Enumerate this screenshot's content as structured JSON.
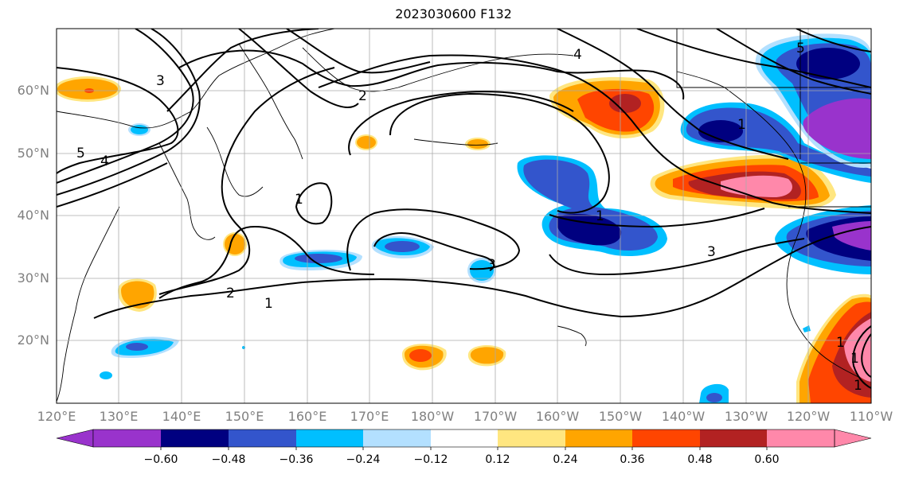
{
  "title": "2023030600 F132",
  "lat_labels": [
    "60°N",
    "50°N",
    "40°N",
    "30°N",
    "20°N"
  ],
  "lon_labels": [
    "120°E",
    "130°E",
    "140°E",
    "150°E",
    "160°E",
    "170°E",
    "180°W",
    "170°W",
    "160°W",
    "150°W",
    "140°W",
    "130°W",
    "120°W",
    "110°W"
  ],
  "contour_labels": [
    "5",
    "4",
    "3",
    "2",
    "1",
    "1",
    "2",
    "1",
    "1",
    "3",
    "3",
    "4",
    "5",
    "1",
    "1",
    "1"
  ],
  "colorbar": {
    "ticks": [
      "−0.60",
      "−0.48",
      "−0.36",
      "−0.24",
      "−0.12",
      "0.12",
      "0.24",
      "0.36",
      "0.48",
      "0.60"
    ],
    "colors": [
      "#9933cc",
      "#000080",
      "#3355cc",
      "#00bfff",
      "#b3e0ff",
      "#ffffff",
      "#ffe680",
      "#ffa500",
      "#ff4500",
      "#b22222",
      "#ff88aa"
    ]
  },
  "colors": {
    "purple": "#9933cc",
    "navy": "#000080",
    "blue": "#3355cc",
    "sky": "#00bfff",
    "light_blue": "#b3e0ff",
    "light_yellow": "#ffe680",
    "orange": "#ffa500",
    "red_orange": "#ff4500",
    "dark_red": "#b22222",
    "pink": "#ff88aa"
  }
}
